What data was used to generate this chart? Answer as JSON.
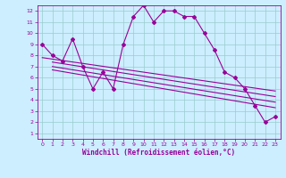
{
  "xlabel": "Windchill (Refroidissement éolien,°C)",
  "bg_color": "#cceeff",
  "line_color": "#990099",
  "grid_color": "#99cccc",
  "xlim": [
    -0.5,
    23.5
  ],
  "ylim": [
    0.5,
    12.5
  ],
  "xticks": [
    0,
    1,
    2,
    3,
    4,
    5,
    6,
    7,
    8,
    9,
    10,
    11,
    12,
    13,
    14,
    15,
    16,
    17,
    18,
    19,
    20,
    21,
    22,
    23
  ],
  "yticks": [
    1,
    2,
    3,
    4,
    5,
    6,
    7,
    8,
    9,
    10,
    11,
    12
  ],
  "main_x": [
    0,
    1,
    2,
    3,
    4,
    5,
    6,
    7,
    8,
    9,
    10,
    11,
    12,
    13,
    14,
    15,
    16,
    17,
    18,
    19,
    20,
    21,
    22,
    23
  ],
  "main_y": [
    9,
    8,
    7.5,
    9.5,
    7,
    5,
    6.5,
    5,
    9,
    11.5,
    12.5,
    11,
    12,
    12,
    11.5,
    11.5,
    10,
    8.5,
    6.5,
    6,
    5,
    3.5,
    2,
    2.5
  ],
  "trend_lines": [
    [
      [
        0,
        23
      ],
      [
        7.8,
        4.8
      ]
    ],
    [
      [
        1,
        23
      ],
      [
        7.4,
        4.3
      ]
    ],
    [
      [
        1,
        23
      ],
      [
        7.0,
        3.8
      ]
    ],
    [
      [
        1,
        23
      ],
      [
        6.7,
        3.3
      ]
    ]
  ]
}
